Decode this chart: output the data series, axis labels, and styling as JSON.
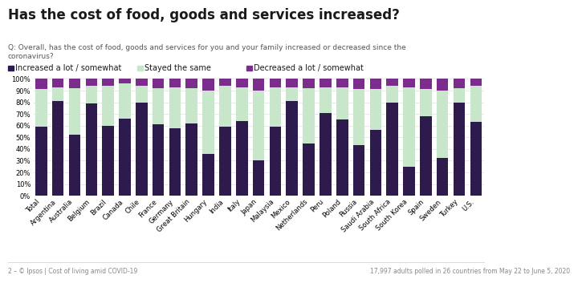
{
  "title": "Has the cost of food, goods and services increased?",
  "subtitle": "Q: Overall, has the cost of food, goods and services for you and your family increased or decreased since the\ncoronavirus?",
  "footnote_left": "2 – © Ipsos | Cost of living amid COVID-19",
  "footnote_right": "17,997 adults polled in 26 countries from May 22 to June 5, 2020",
  "legend": [
    "Increased a lot / somewhat",
    "Stayed the same",
    "Decreased a lot / somewhat"
  ],
  "colors": [
    "#2d1b4e",
    "#c8e6c9",
    "#7b2d8b"
  ],
  "categories": [
    "Total",
    "Argentina",
    "Australia",
    "Belgium",
    "Brazil",
    "Canada",
    "Chile",
    "France",
    "Germany",
    "Great Britain",
    "Hungary",
    "India",
    "Italy",
    "Japan",
    "Malaysia",
    "Mexico",
    "Netherlands",
    "Peru",
    "Poland",
    "Russia",
    "Saudi Arabia",
    "South Africa",
    "South Korea",
    "Spain",
    "Sweden",
    "Turkey",
    "U.S."
  ],
  "increased": [
    59,
    81,
    52,
    79,
    60,
    66,
    80,
    61,
    58,
    62,
    36,
    59,
    64,
    30,
    59,
    81,
    45,
    71,
    65,
    43,
    56,
    80,
    25,
    68,
    32,
    80,
    63
  ],
  "stayed": [
    32,
    12,
    40,
    15,
    34,
    30,
    14,
    31,
    35,
    30,
    54,
    35,
    29,
    60,
    34,
    12,
    47,
    22,
    28,
    48,
    35,
    14,
    68,
    23,
    58,
    12,
    31
  ],
  "decreased": [
    9,
    7,
    8,
    6,
    6,
    4,
    6,
    8,
    7,
    8,
    10,
    6,
    7,
    10,
    7,
    7,
    8,
    7,
    7,
    9,
    9,
    6,
    7,
    9,
    10,
    8,
    6
  ],
  "ylim": [
    0,
    100
  ],
  "background_color": "#ffffff",
  "title_fontsize": 12,
  "subtitle_fontsize": 6.5,
  "tick_fontsize": 6,
  "legend_fontsize": 7
}
